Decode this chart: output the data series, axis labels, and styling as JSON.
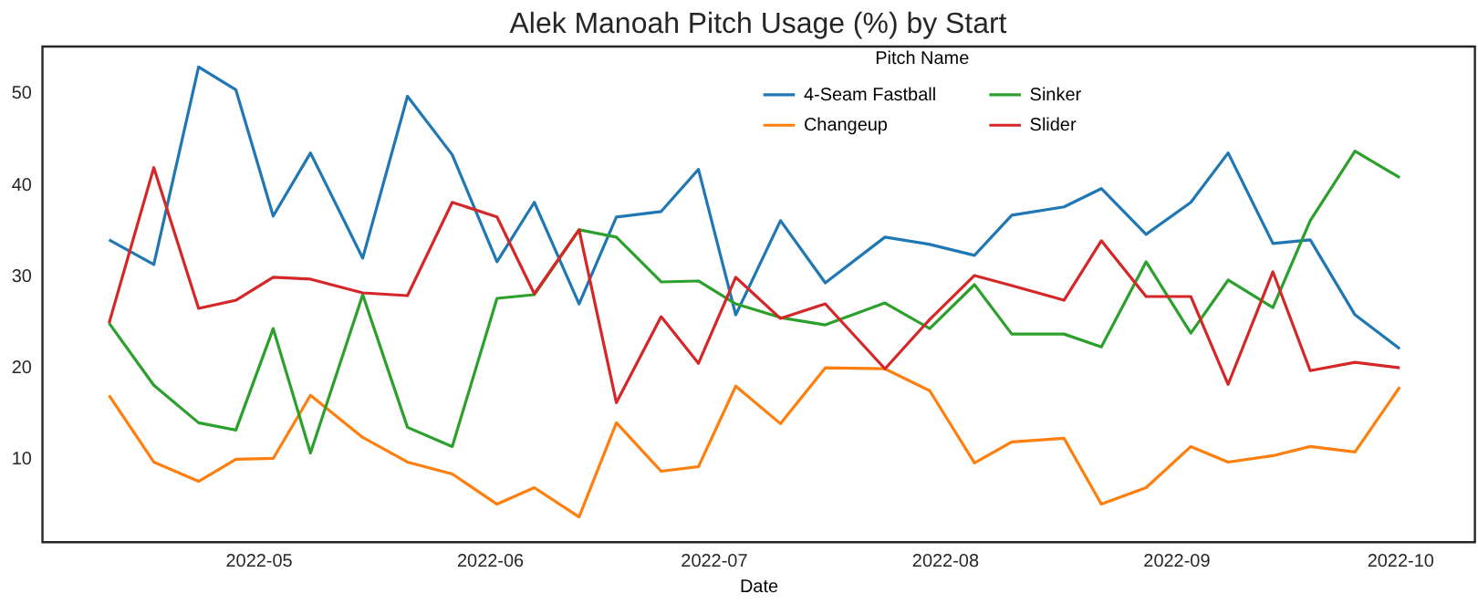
{
  "chart_data": {
    "type": "line",
    "title": "Alek Manoah Pitch Usage (%) by Start",
    "xlabel": "Date",
    "legend_title": "Pitch Name",
    "x": [
      "2022-04-11",
      "2022-04-17",
      "2022-04-23",
      "2022-04-28",
      "2022-05-03",
      "2022-05-08",
      "2022-05-15",
      "2022-05-21",
      "2022-05-27",
      "2022-06-02",
      "2022-06-07",
      "2022-06-13",
      "2022-06-18",
      "2022-06-24",
      "2022-06-29",
      "2022-07-04",
      "2022-07-10",
      "2022-07-16",
      "2022-07-24",
      "2022-07-30",
      "2022-08-05",
      "2022-08-10",
      "2022-08-17",
      "2022-08-22",
      "2022-08-28",
      "2022-09-03",
      "2022-09-08",
      "2022-09-14",
      "2022-09-19",
      "2022-09-25",
      "2022-10-01"
    ],
    "series": [
      {
        "name": "4-Seam Fastball",
        "color": "#1f77b4",
        "values": [
          33.9,
          31.2,
          52.8,
          50.3,
          36.5,
          43.4,
          31.9,
          49.6,
          43.2,
          31.5,
          38.0,
          26.9,
          36.4,
          37.0,
          41.6,
          25.7,
          36.0,
          29.2,
          34.2,
          33.4,
          32.2,
          36.6,
          37.5,
          39.5,
          34.5,
          38.0,
          43.4,
          33.5,
          33.9,
          25.7,
          22.0
        ]
      },
      {
        "name": "Changeup",
        "color": "#ff7f0e",
        "values": [
          16.9,
          9.6,
          7.5,
          9.9,
          10.0,
          16.9,
          12.3,
          9.6,
          8.3,
          5.0,
          6.8,
          3.6,
          13.9,
          8.6,
          9.1,
          17.9,
          13.8,
          19.9,
          19.8,
          17.4,
          9.5,
          11.8,
          12.2,
          5.0,
          6.8,
          11.3,
          9.6,
          10.3,
          11.3,
          10.7,
          17.8
        ]
      },
      {
        "name": "Sinker",
        "color": "#2ca02c",
        "values": [
          24.8,
          18.0,
          13.9,
          13.1,
          24.2,
          10.6,
          27.9,
          13.4,
          11.3,
          27.5,
          27.9,
          35.0,
          34.2,
          29.3,
          29.4,
          26.9,
          25.4,
          24.6,
          27.0,
          24.2,
          29.0,
          23.6,
          23.6,
          22.2,
          31.5,
          23.7,
          29.5,
          26.5,
          36.0,
          43.6,
          40.7
        ]
      },
      {
        "name": "Slider",
        "color": "#d62728",
        "values": [
          24.8,
          41.8,
          26.4,
          27.3,
          29.8,
          29.6,
          28.1,
          27.8,
          38.0,
          36.4,
          28.0,
          35.0,
          16.1,
          25.5,
          20.4,
          29.8,
          25.3,
          26.9,
          19.8,
          25.2,
          30.0,
          28.9,
          27.3,
          33.8,
          27.7,
          27.7,
          18.1,
          30.4,
          19.6,
          20.5,
          19.9
        ]
      }
    ],
    "xlim": [
      "2022-04-02",
      "2022-10-11"
    ],
    "xticks": [
      "2022-05",
      "2022-06",
      "2022-07",
      "2022-08",
      "2022-09",
      "2022-10"
    ],
    "ylim": [
      0.9,
      55.1
    ],
    "yticks": [
      10,
      20,
      30,
      40,
      50
    ],
    "grid": false,
    "legend": "top",
    "line_style": "solid",
    "marker": "none"
  }
}
